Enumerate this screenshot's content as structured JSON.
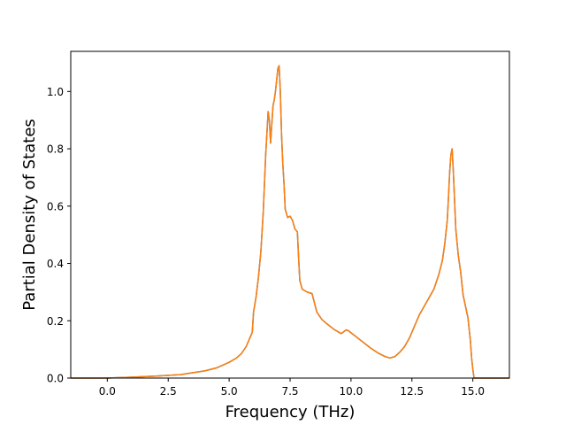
{
  "chart_data": {
    "type": "line",
    "title": "",
    "xlabel": "Frequency (THz)",
    "ylabel": "Partial Density of States",
    "xlim": [
      -1.5,
      16.5
    ],
    "ylim": [
      0.0,
      1.14
    ],
    "x_ticks": [
      0.0,
      2.5,
      5.0,
      7.5,
      10.0,
      12.5,
      15.0
    ],
    "x_tick_labels": [
      "0.0",
      "2.5",
      "5.0",
      "7.5",
      "10.0",
      "12.5",
      "15.0"
    ],
    "y_ticks": [
      0.0,
      0.2,
      0.4,
      0.6,
      0.8,
      1.0
    ],
    "y_tick_labels": [
      "0.0",
      "0.2",
      "0.4",
      "0.6",
      "0.8",
      "1.0"
    ],
    "grid": false,
    "legend": "none",
    "series": [
      {
        "color": "#1f77b4",
        "x": [
          -1.5,
          -0.5,
          0.0,
          1.0,
          2.0,
          3.0,
          4.0,
          4.5,
          5.0,
          5.3,
          5.5,
          5.7,
          5.85,
          5.95,
          6.0,
          6.1,
          6.2,
          6.3,
          6.4,
          6.5,
          6.6,
          6.65,
          6.7,
          6.8,
          6.85,
          6.9,
          6.95,
          7.0,
          7.05,
          7.1,
          7.15,
          7.2,
          7.25,
          7.3,
          7.4,
          7.5,
          7.6,
          7.7,
          7.8,
          7.85,
          7.9,
          8.0,
          8.2,
          8.4,
          8.6,
          8.8,
          9.0,
          9.3,
          9.6,
          9.8,
          9.9,
          10.0,
          10.2,
          10.5,
          10.8,
          11.1,
          11.4,
          11.6,
          11.8,
          12.0,
          12.2,
          12.4,
          12.6,
          12.8,
          13.0,
          13.2,
          13.4,
          13.6,
          13.75,
          13.85,
          13.95,
          14.0,
          14.05,
          14.1,
          14.15,
          14.2,
          14.25,
          14.3,
          14.4,
          14.5,
          14.6,
          14.7,
          14.8,
          14.9,
          14.95,
          15.0,
          15.05,
          15.1,
          15.5,
          16.5
        ],
        "y": [
          0.0,
          0.0,
          0.0,
          0.003,
          0.007,
          0.012,
          0.025,
          0.036,
          0.055,
          0.07,
          0.085,
          0.11,
          0.14,
          0.16,
          0.23,
          0.28,
          0.35,
          0.44,
          0.58,
          0.78,
          0.93,
          0.9,
          0.82,
          0.95,
          0.97,
          1.0,
          1.04,
          1.08,
          1.09,
          1.0,
          0.85,
          0.75,
          0.68,
          0.59,
          0.56,
          0.565,
          0.55,
          0.52,
          0.51,
          0.42,
          0.34,
          0.31,
          0.3,
          0.295,
          0.23,
          0.205,
          0.19,
          0.17,
          0.155,
          0.168,
          0.165,
          0.158,
          0.145,
          0.125,
          0.105,
          0.088,
          0.075,
          0.07,
          0.075,
          0.09,
          0.11,
          0.14,
          0.18,
          0.22,
          0.25,
          0.28,
          0.31,
          0.36,
          0.41,
          0.47,
          0.55,
          0.63,
          0.72,
          0.78,
          0.8,
          0.72,
          0.62,
          0.52,
          0.43,
          0.37,
          0.29,
          0.25,
          0.21,
          0.13,
          0.07,
          0.03,
          0.0,
          0.0,
          0.0,
          0.0
        ]
      },
      {
        "color": "#ff7f0e",
        "x": [
          -1.5,
          -0.5,
          0.0,
          1.0,
          2.0,
          3.0,
          4.0,
          4.5,
          5.0,
          5.3,
          5.5,
          5.7,
          5.85,
          5.95,
          6.0,
          6.1,
          6.2,
          6.3,
          6.4,
          6.5,
          6.6,
          6.65,
          6.7,
          6.8,
          6.85,
          6.9,
          6.95,
          7.0,
          7.05,
          7.1,
          7.15,
          7.2,
          7.25,
          7.3,
          7.4,
          7.5,
          7.6,
          7.7,
          7.8,
          7.85,
          7.9,
          8.0,
          8.2,
          8.4,
          8.6,
          8.8,
          9.0,
          9.3,
          9.6,
          9.8,
          9.9,
          10.0,
          10.2,
          10.5,
          10.8,
          11.1,
          11.4,
          11.6,
          11.8,
          12.0,
          12.2,
          12.4,
          12.6,
          12.8,
          13.0,
          13.2,
          13.4,
          13.6,
          13.75,
          13.85,
          13.95,
          14.0,
          14.05,
          14.1,
          14.15,
          14.2,
          14.25,
          14.3,
          14.4,
          14.5,
          14.6,
          14.7,
          14.8,
          14.9,
          14.95,
          15.0,
          15.05,
          15.1,
          15.5,
          16.5
        ],
        "y": [
          0.0,
          0.0,
          0.0,
          0.003,
          0.007,
          0.012,
          0.025,
          0.036,
          0.055,
          0.07,
          0.085,
          0.11,
          0.14,
          0.16,
          0.23,
          0.28,
          0.35,
          0.44,
          0.58,
          0.78,
          0.93,
          0.9,
          0.82,
          0.95,
          0.97,
          1.0,
          1.04,
          1.08,
          1.09,
          1.0,
          0.85,
          0.75,
          0.68,
          0.59,
          0.56,
          0.565,
          0.55,
          0.52,
          0.51,
          0.42,
          0.34,
          0.31,
          0.3,
          0.295,
          0.23,
          0.205,
          0.19,
          0.17,
          0.155,
          0.168,
          0.165,
          0.158,
          0.145,
          0.125,
          0.105,
          0.088,
          0.075,
          0.07,
          0.075,
          0.09,
          0.11,
          0.14,
          0.18,
          0.22,
          0.25,
          0.28,
          0.31,
          0.36,
          0.41,
          0.47,
          0.55,
          0.63,
          0.72,
          0.78,
          0.8,
          0.72,
          0.62,
          0.52,
          0.43,
          0.37,
          0.29,
          0.25,
          0.21,
          0.13,
          0.07,
          0.03,
          0.0,
          0.0,
          0.0,
          0.0
        ]
      }
    ]
  }
}
